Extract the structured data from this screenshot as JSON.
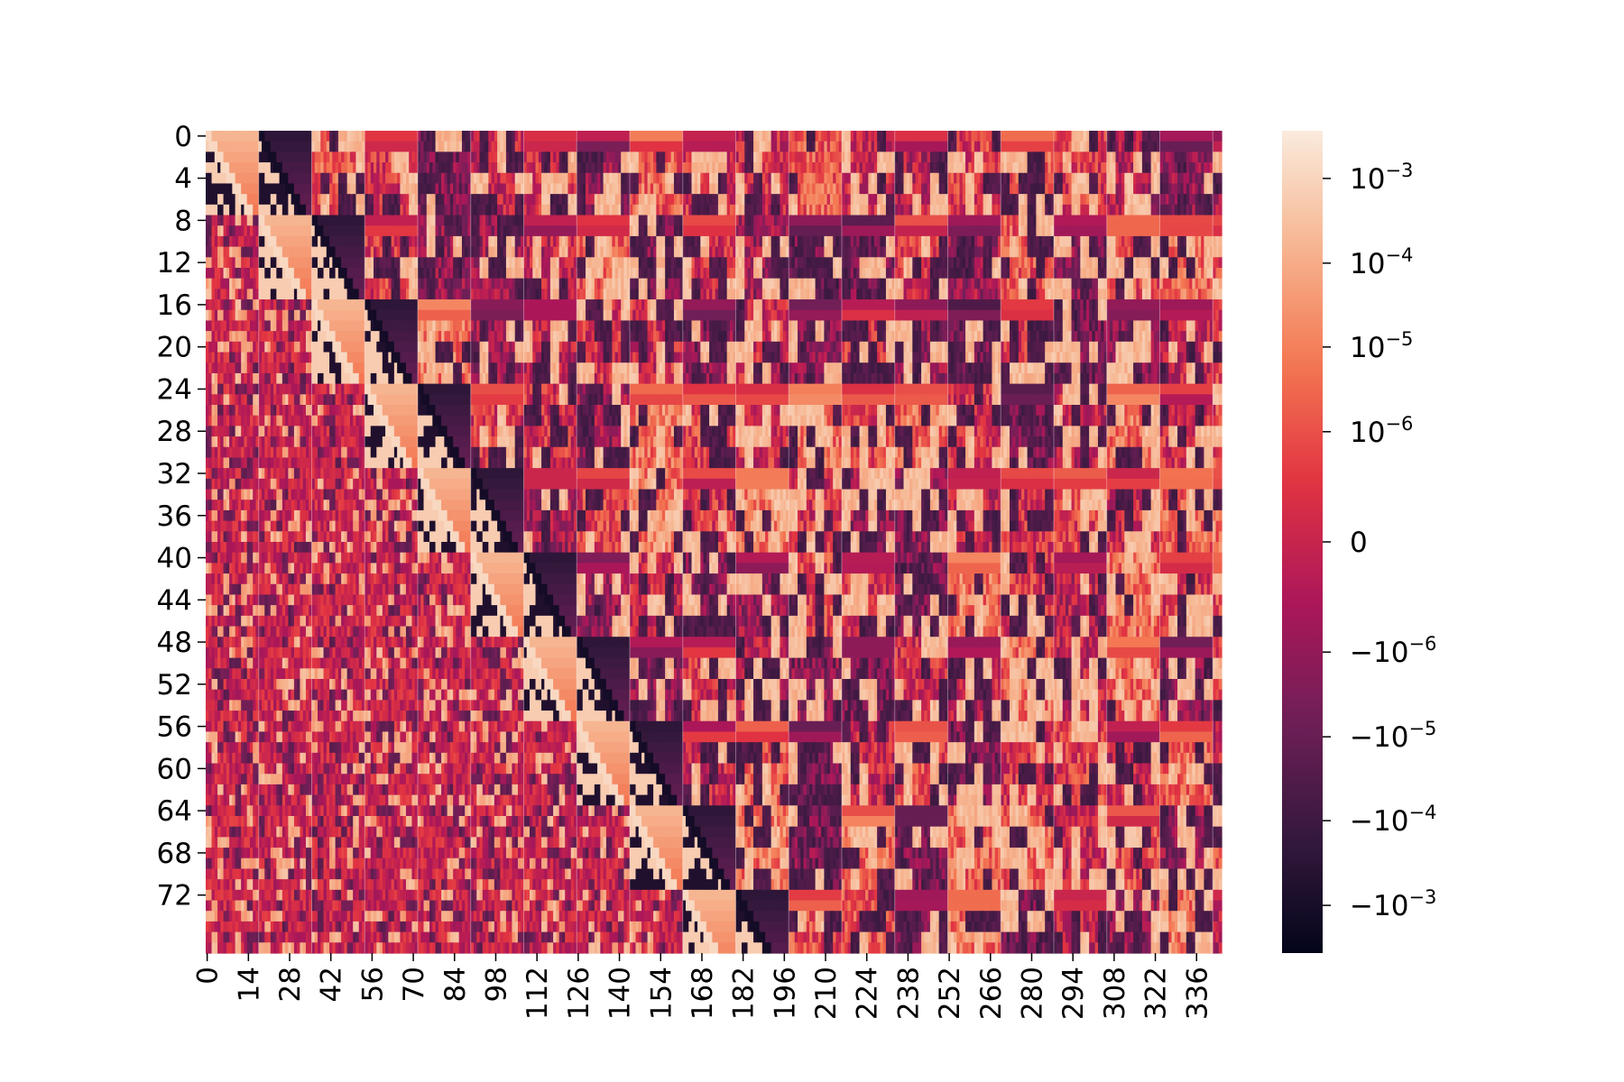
{
  "chart_data": {
    "type": "heatmap",
    "title": "",
    "xlabel": "",
    "ylabel": "",
    "n_rows": 78,
    "n_cols": 345,
    "row_block_size": 8,
    "col_block_size": 18,
    "x_ticks": [
      0,
      14,
      28,
      42,
      56,
      70,
      84,
      98,
      112,
      126,
      140,
      154,
      168,
      182,
      196,
      210,
      224,
      238,
      252,
      266,
      280,
      294,
      308,
      322,
      336
    ],
    "x_tick_labels": [
      "0",
      "14",
      "28",
      "42",
      "56",
      "70",
      "84",
      "98",
      "112",
      "126",
      "140",
      "154",
      "168",
      "182",
      "196",
      "210",
      "224",
      "238",
      "252",
      "266",
      "280",
      "294",
      "308",
      "322",
      "336"
    ],
    "y_ticks": [
      0,
      4,
      8,
      12,
      16,
      20,
      24,
      28,
      32,
      36,
      40,
      44,
      48,
      52,
      56,
      60,
      64,
      68,
      72
    ],
    "y_tick_labels": [
      "0",
      "4",
      "8",
      "12",
      "16",
      "20",
      "24",
      "28",
      "32",
      "36",
      "40",
      "44",
      "48",
      "52",
      "56",
      "60",
      "64",
      "68",
      "72"
    ],
    "color_scale": "symlog",
    "colormap": "rocket",
    "vmin": -0.005,
    "vmax": 0.005,
    "colorbar": {
      "ticks": [
        {
          "base": "10",
          "exponent": "−3",
          "sign": ""
        },
        {
          "base": "10",
          "exponent": "−4",
          "sign": ""
        },
        {
          "base": "10",
          "exponent": "−5",
          "sign": ""
        },
        {
          "base": "10",
          "exponent": "−6",
          "sign": ""
        },
        {
          "base": "0",
          "exponent": "",
          "sign": ""
        },
        {
          "base": "10",
          "exponent": "−6",
          "sign": "−"
        },
        {
          "base": "10",
          "exponent": "−5",
          "sign": "−"
        },
        {
          "base": "10",
          "exponent": "−4",
          "sign": "−"
        },
        {
          "base": "10",
          "exponent": "−3",
          "sign": "−"
        }
      ],
      "tick_levels": [
        0.942,
        0.839,
        0.737,
        0.634,
        0.5,
        0.366,
        0.263,
        0.161,
        0.058
      ]
    },
    "colormap_stops": [
      "#03051a",
      "#36193e",
      "#701f57",
      "#ad1759",
      "#e13342",
      "#f37651",
      "#f6b48f",
      "#faebdd"
    ]
  }
}
